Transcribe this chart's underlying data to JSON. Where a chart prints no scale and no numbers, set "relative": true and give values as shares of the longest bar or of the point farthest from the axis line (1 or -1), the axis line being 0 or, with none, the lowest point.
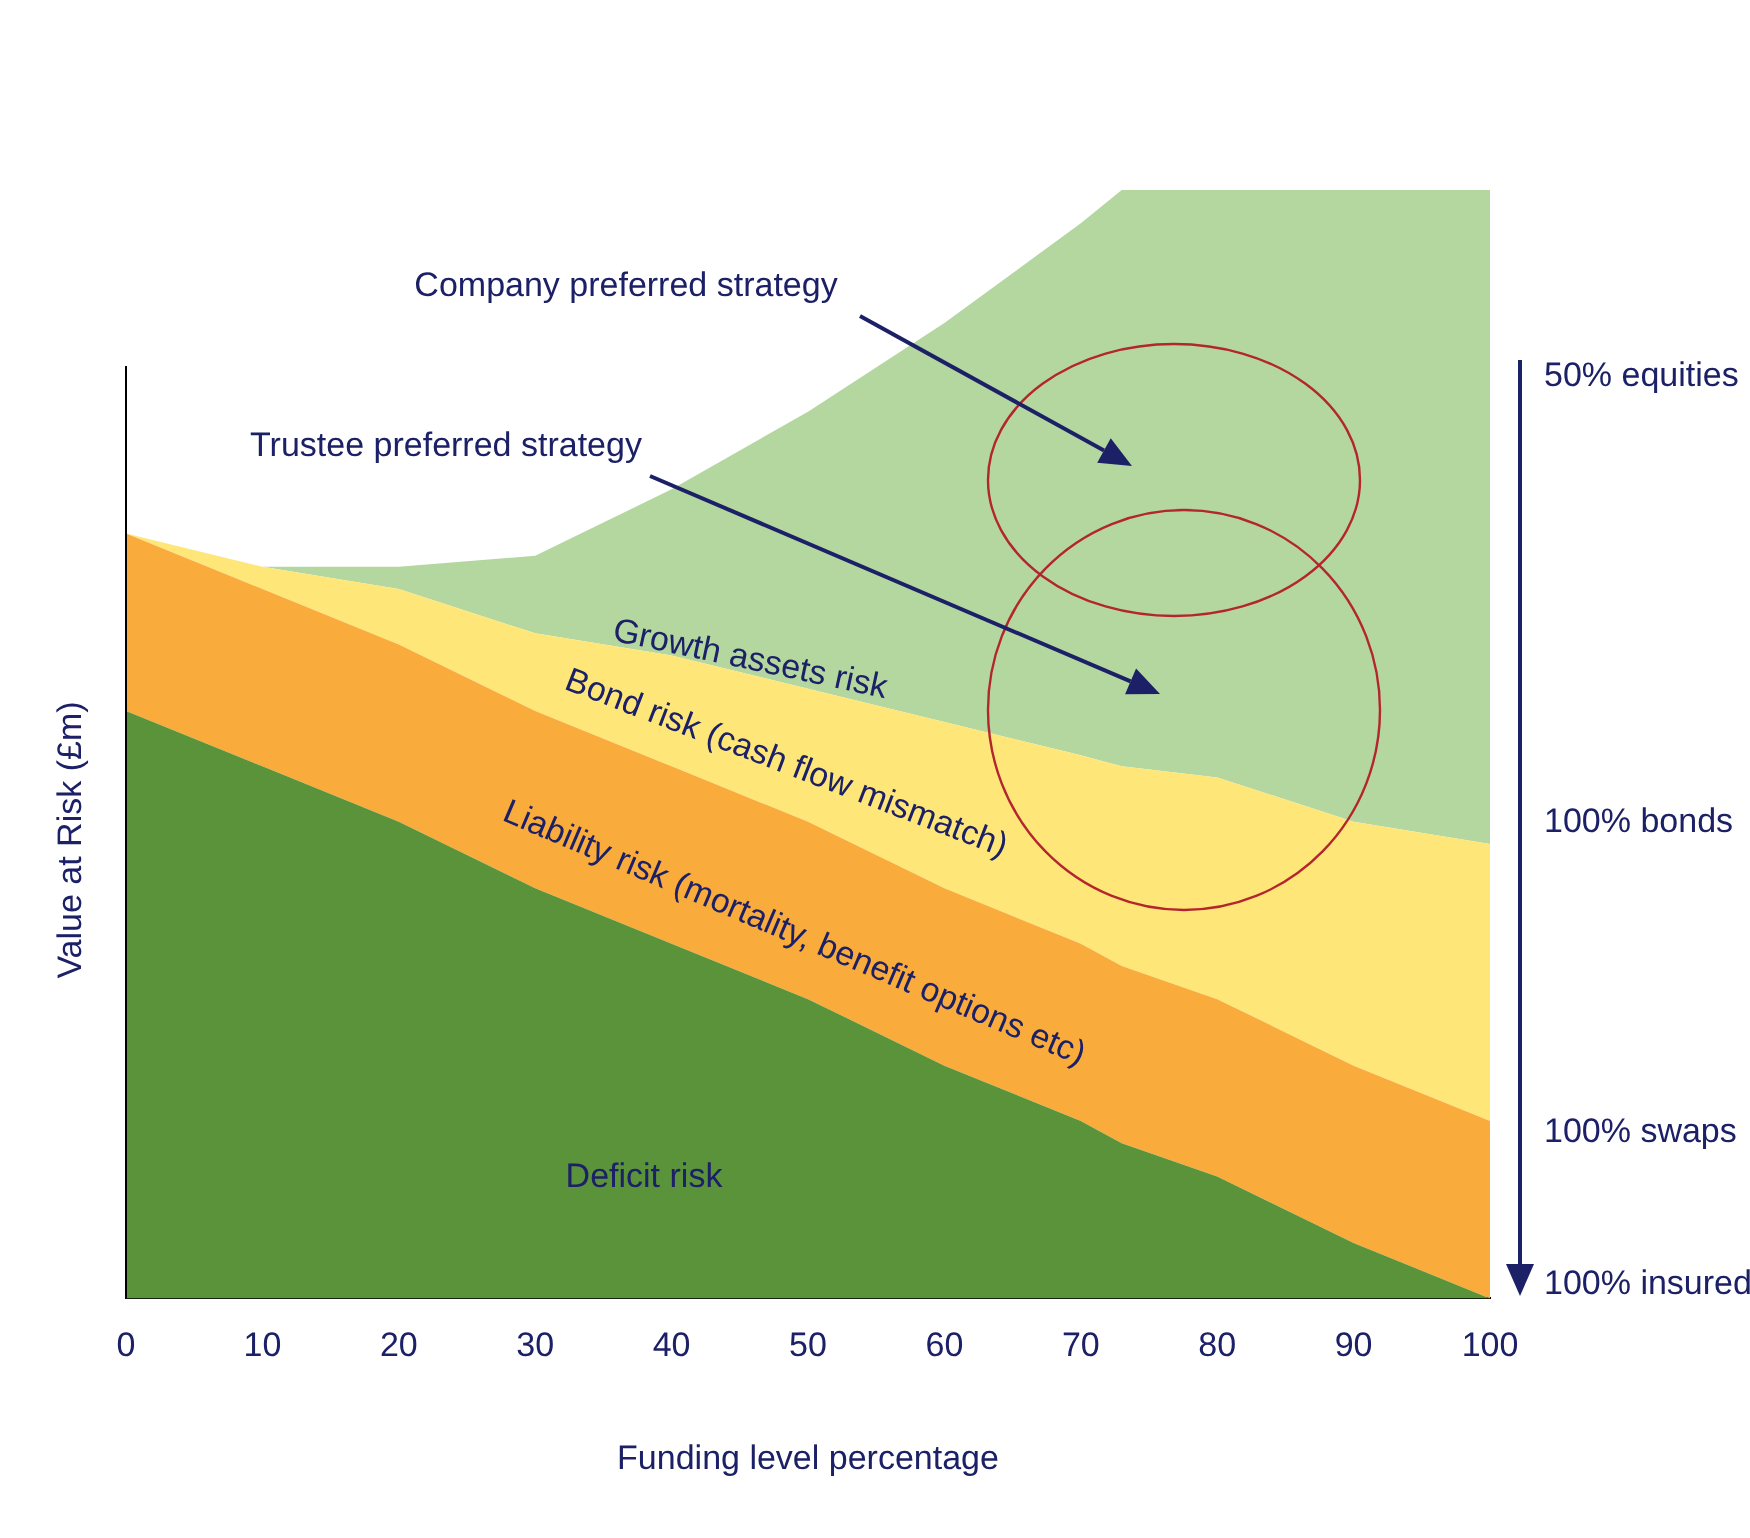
{
  "chart_data": {
    "type": "area",
    "stacked": true,
    "relative": true,
    "xlabel": "Funding level percentage",
    "ylabel": "Value at Risk (£m)",
    "x": [
      0,
      10,
      20,
      30,
      40,
      50,
      60,
      70,
      73,
      80,
      90,
      100
    ],
    "xlim": [
      0,
      100
    ],
    "xticks": [
      0,
      10,
      20,
      30,
      40,
      50,
      60,
      70,
      80,
      90,
      100
    ],
    "series": [
      {
        "name": "Deficit risk",
        "color": "#5b933a",
        "values": [
          0.53,
          0.48,
          0.43,
          0.37,
          0.32,
          0.27,
          0.21,
          0.16,
          0.14,
          0.11,
          0.05,
          0
        ]
      },
      {
        "name": "Liability risk (mortality, benefit options etc)",
        "color": "#f9ab3b",
        "values": [
          0.16,
          0.16,
          0.16,
          0.16,
          0.16,
          0.16,
          0.16,
          0.16,
          0.16,
          0.16,
          0.16,
          0.16
        ]
      },
      {
        "name": "Bond risk (cash flow mismatch)",
        "color": "#fee679",
        "values": [
          0,
          0.02,
          0.05,
          0.07,
          0.1,
          0.12,
          0.15,
          0.17,
          0.18,
          0.2,
          0.22,
          0.25
        ]
      },
      {
        "name": "Growth assets risk",
        "color": "#b4d7a0",
        "values": [
          0,
          0,
          0.02,
          0.07,
          0.15,
          0.25,
          0.36,
          0.48,
          0.52,
          0.53,
          0.57,
          0.59
        ]
      }
    ],
    "annotations": [
      "Company preferred strategy",
      "Trustee preferred strategy",
      "50% equities",
      "100% bonds",
      "100% swaps",
      "100% insured"
    ],
    "legend": false,
    "grid": false,
    "tick_labels": "x"
  }
}
